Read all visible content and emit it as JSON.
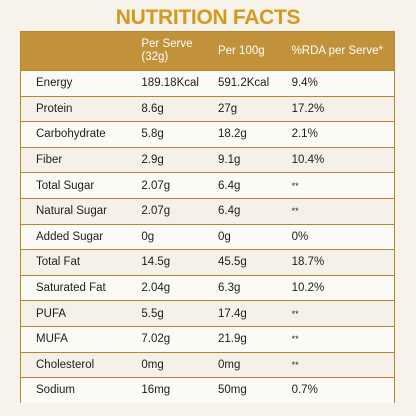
{
  "title": "NUTRITION FACTS",
  "headers": {
    "per_serve_line1": "Per Serve",
    "per_serve_line2": "(32g)",
    "per_100g": "Per 100g",
    "rda": "%RDA per Serve*"
  },
  "rows": [
    {
      "nutrient": "Energy",
      "per_serve": "189.18Kcal",
      "per_100g": "591.2Kcal",
      "rda": "9.4%"
    },
    {
      "nutrient": "Protein",
      "per_serve": "8.6g",
      "per_100g": "27g",
      "rda": "17.2%"
    },
    {
      "nutrient": "Carbohydrate",
      "per_serve": "5.8g",
      "per_100g": "18.2g",
      "rda": "2.1%"
    },
    {
      "nutrient": "Fiber",
      "per_serve": "2.9g",
      "per_100g": "9.1g",
      "rda": "10.4%"
    },
    {
      "nutrient": "Total Sugar",
      "per_serve": "2.07g",
      "per_100g": "6.4g",
      "rda": "**"
    },
    {
      "nutrient": "Natural Sugar",
      "per_serve": "2.07g",
      "per_100g": "6.4g",
      "rda": "**"
    },
    {
      "nutrient": "Added Sugar",
      "per_serve": "0g",
      "per_100g": "0g",
      "rda": "0%"
    },
    {
      "nutrient": "Total Fat",
      "per_serve": "14.5g",
      "per_100g": "45.5g",
      "rda": "18.7%"
    },
    {
      "nutrient": "Saturated Fat",
      "per_serve": "2.04g",
      "per_100g": "6.3g",
      "rda": "10.2%"
    },
    {
      "nutrient": "PUFA",
      "per_serve": "5.5g",
      "per_100g": "17.4g",
      "rda": "**"
    },
    {
      "nutrient": "MUFA",
      "per_serve": "7.02g",
      "per_100g": "21.9g",
      "rda": "**"
    },
    {
      "nutrient": "Cholesterol",
      "per_serve": "0mg",
      "per_100g": "0mg",
      "rda": "**"
    },
    {
      "nutrient": "Sodium",
      "per_serve": "16mg",
      "per_100g": "50mg",
      "rda": "0.7%"
    }
  ],
  "colors": {
    "title": "#d39a1e",
    "header_bg": "#c1923a",
    "border": "#b48632",
    "page_bg": "#f7f2ea"
  }
}
